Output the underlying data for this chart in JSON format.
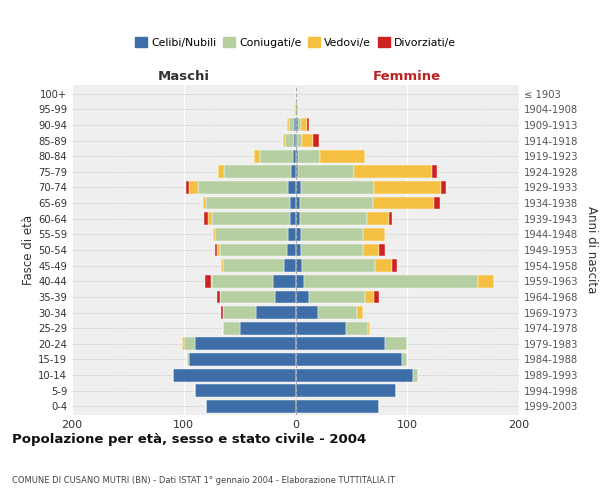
{
  "age_groups": [
    "0-4",
    "5-9",
    "10-14",
    "15-19",
    "20-24",
    "25-29",
    "30-34",
    "35-39",
    "40-44",
    "45-49",
    "50-54",
    "55-59",
    "60-64",
    "65-69",
    "70-74",
    "75-79",
    "80-84",
    "85-89",
    "90-94",
    "95-99",
    "100+"
  ],
  "birth_years": [
    "1999-2003",
    "1994-1998",
    "1989-1993",
    "1984-1988",
    "1979-1983",
    "1974-1978",
    "1969-1973",
    "1964-1968",
    "1959-1963",
    "1954-1958",
    "1949-1953",
    "1944-1948",
    "1939-1943",
    "1934-1938",
    "1929-1933",
    "1924-1928",
    "1919-1923",
    "1914-1918",
    "1909-1913",
    "1904-1908",
    "≤ 1903"
  ],
  "males_celibi": [
    80,
    90,
    110,
    95,
    90,
    50,
    35,
    18,
    20,
    10,
    8,
    7,
    5,
    5,
    7,
    4,
    2,
    1,
    1,
    0,
    0
  ],
  "males_coniugati": [
    0,
    0,
    0,
    2,
    10,
    15,
    30,
    50,
    55,
    55,
    60,
    65,
    70,
    75,
    80,
    60,
    30,
    8,
    5,
    1,
    0
  ],
  "males_vedovi": [
    0,
    0,
    0,
    0,
    2,
    0,
    0,
    0,
    1,
    2,
    2,
    2,
    3,
    3,
    8,
    5,
    5,
    2,
    2,
    0,
    0
  ],
  "males_divorziati": [
    0,
    0,
    0,
    0,
    0,
    0,
    2,
    2,
    5,
    0,
    2,
    0,
    4,
    0,
    3,
    0,
    0,
    0,
    0,
    0,
    0
  ],
  "females_nubili": [
    75,
    90,
    105,
    95,
    80,
    45,
    20,
    12,
    8,
    6,
    5,
    5,
    4,
    4,
    5,
    2,
    2,
    1,
    2,
    0,
    0
  ],
  "females_coniugate": [
    0,
    0,
    5,
    5,
    20,
    20,
    35,
    50,
    155,
    65,
    55,
    55,
    60,
    65,
    65,
    50,
    20,
    5,
    3,
    0,
    0
  ],
  "females_vedove": [
    0,
    0,
    0,
    0,
    0,
    2,
    5,
    8,
    15,
    15,
    15,
    20,
    20,
    55,
    60,
    70,
    40,
    10,
    5,
    2,
    0
  ],
  "females_divorziate": [
    0,
    0,
    0,
    0,
    0,
    0,
    0,
    5,
    0,
    5,
    5,
    0,
    2,
    5,
    5,
    5,
    0,
    5,
    2,
    0,
    0
  ],
  "color_celibi": "#3d6ea8",
  "color_coniugati": "#b5cfa0",
  "color_vedovi": "#f5c042",
  "color_divorziati": "#cc2222",
  "legend_labels": [
    "Celibi/Nubili",
    "Coniugati/e",
    "Vedovi/e",
    "Divorziati/e"
  ],
  "title": "Popolazione per età, sesso e stato civile - 2004",
  "subtitle": "COMUNE DI CUSANO MUTRI (BN) - Dati ISTAT 1° gennaio 2004 - Elaborazione TUTTITALIA.IT",
  "label_maschi": "Maschi",
  "label_femmine": "Femmine",
  "ylabel_left": "Fasce di età",
  "ylabel_right": "Anni di nascita",
  "xlim": 200,
  "bg_color": "#efefef"
}
